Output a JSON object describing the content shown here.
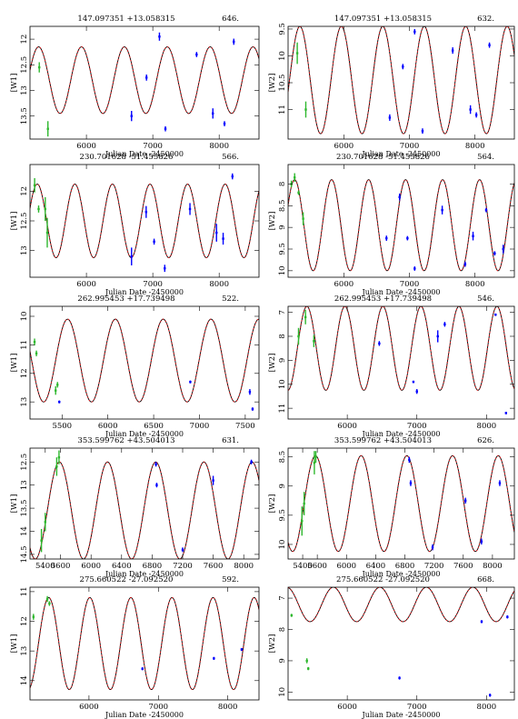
{
  "chart_data": [
    {
      "type": "line",
      "title_coords": "147.097351 +13.058315",
      "title_period": "646.",
      "ylabel": "[W1]",
      "xlabel": "Julian Date -2450000",
      "xlim": [
        5150,
        8600
      ],
      "ylim": [
        13.95,
        11.75
      ],
      "xticks": [
        6000,
        7000,
        8000
      ],
      "yticks": [
        12,
        12.5,
        13,
        13.5
      ],
      "model": {
        "period": 646,
        "mean": 12.8,
        "amp": 0.65,
        "t0": 5280
      },
      "series": [
        {
          "color": "#2eb82e",
          "points": [
            [
              5290,
              12.55,
              0.1
            ],
            [
              5420,
              13.75,
              0.15
            ]
          ]
        },
        {
          "color": "#0000ff",
          "points": [
            [
              6680,
              13.5,
              0.1
            ],
            [
              6905,
              12.75,
              0.06
            ],
            [
              7100,
              11.95,
              0.08
            ],
            [
              7190,
              13.75,
              0.05
            ],
            [
              7660,
              12.3,
              0.05
            ],
            [
              7905,
              13.45,
              0.1
            ],
            [
              8080,
              13.65,
              0.05
            ],
            [
              8220,
              12.05,
              0.06
            ]
          ]
        }
      ]
    },
    {
      "type": "line",
      "title_coords": "147.097351 +13.058315",
      "title_period": "632.",
      "ylabel": "[W2]",
      "xlabel": "Julian Date -2450000",
      "xlim": [
        5150,
        8600
      ],
      "ylim": [
        11.55,
        9.45
      ],
      "xticks": [
        6000,
        7000,
        8000
      ],
      "yticks": [
        9.5,
        10,
        10.5,
        11
      ],
      "model": {
        "period": 632,
        "mean": 10.45,
        "amp": 1.0,
        "t0": 5330
      },
      "series": [
        {
          "color": "#2eb82e",
          "points": [
            [
              5290,
              9.95,
              0.2
            ],
            [
              5420,
              11.0,
              0.15
            ]
          ]
        },
        {
          "color": "#0000ff",
          "points": [
            [
              6700,
              11.15,
              0.06
            ],
            [
              6900,
              10.2,
              0.05
            ],
            [
              7080,
              9.55,
              0.05
            ],
            [
              7200,
              11.4,
              0.05
            ],
            [
              7660,
              9.9,
              0.06
            ],
            [
              7930,
              11.0,
              0.08
            ],
            [
              8020,
              11.1,
              0.05
            ],
            [
              8220,
              9.8,
              0.05
            ]
          ]
        }
      ]
    },
    {
      "type": "line",
      "title_coords": "230.701628 -51.455826",
      "title_period": "566.",
      "ylabel": "[W1]",
      "xlabel": "Julian Date -2450000",
      "xlim": [
        5150,
        8600
      ],
      "ylim": [
        13.45,
        11.55
      ],
      "xticks": [
        6000,
        7000,
        8000
      ],
      "yticks": [
        12,
        12.5,
        13
      ],
      "model": {
        "period": 566,
        "mean": 12.5,
        "amp": 0.62,
        "t0": 5260
      },
      "series": [
        {
          "color": "#2eb82e",
          "points": [
            [
              5220,
              11.9,
              0.12
            ],
            [
              5280,
              12.3,
              0.06
            ],
            [
              5380,
              12.3,
              0.2
            ],
            [
              5410,
              12.7,
              0.25
            ]
          ]
        },
        {
          "color": "#0000ff",
          "points": [
            [
              6680,
              13.1,
              0.15
            ],
            [
              6900,
              12.35,
              0.1
            ],
            [
              7020,
              12.85,
              0.05
            ],
            [
              7180,
              13.3,
              0.06
            ],
            [
              7560,
              12.3,
              0.1
            ],
            [
              7960,
              12.7,
              0.15
            ],
            [
              8060,
              12.8,
              0.1
            ],
            [
              8200,
              11.75,
              0.05
            ]
          ]
        }
      ]
    },
    {
      "type": "line",
      "title_coords": "230.701628 -51.455826",
      "title_period": "564.",
      "ylabel": "[W2]",
      "xlabel": "Julian Date -2450000",
      "xlim": [
        5150,
        8600
      ],
      "ylim": [
        10.15,
        7.55
      ],
      "xticks": [
        6000,
        7000,
        8000
      ],
      "yticks": [
        8,
        8.5,
        9,
        9.5,
        10
      ],
      "model": {
        "period": 564,
        "mean": 8.95,
        "amp": 1.05,
        "t0": 5250
      },
      "series": [
        {
          "color": "#2eb82e",
          "points": [
            [
              5200,
              8.0,
              0.08
            ],
            [
              5250,
              7.85,
              0.1
            ],
            [
              5310,
              8.2,
              0.05
            ],
            [
              5380,
              8.8,
              0.15
            ]
          ]
        },
        {
          "color": "#0000ff",
          "points": [
            [
              6650,
              9.25,
              0.06
            ],
            [
              6850,
              8.3,
              0.08
            ],
            [
              6970,
              9.25,
              0.05
            ],
            [
              7080,
              9.95,
              0.05
            ],
            [
              7500,
              8.6,
              0.1
            ],
            [
              7850,
              9.85,
              0.06
            ],
            [
              7970,
              9.2,
              0.1
            ],
            [
              8170,
              8.6,
              0.05
            ],
            [
              8300,
              9.6,
              0.05
            ],
            [
              8430,
              9.5,
              0.1
            ]
          ]
        }
      ]
    },
    {
      "type": "line",
      "title_coords": "262.995453 +17.739498",
      "title_period": "522.",
      "ylabel": "[W1]",
      "xlabel": "Julian Date -2450000",
      "xlim": [
        5150,
        7650
      ],
      "ylim": [
        13.6,
        9.65
      ],
      "xticks": [
        5500,
        6000,
        6500,
        7000,
        7500
      ],
      "yticks": [
        10,
        11,
        12,
        13
      ],
      "model": {
        "period": 522,
        "mean": 11.55,
        "amp": 1.45,
        "t0": 5560
      },
      "series": [
        {
          "color": "#2eb82e",
          "points": [
            [
              5200,
              10.9,
              0.12
            ],
            [
              5220,
              11.3,
              0.1
            ],
            [
              5430,
              12.6,
              0.15
            ],
            [
              5450,
              12.4,
              0.1
            ]
          ]
        },
        {
          "color": "#0000ff",
          "points": [
            [
              5470,
              13.0,
              0.05
            ],
            [
              6900,
              12.3,
              0.05
            ],
            [
              7550,
              12.65,
              0.1
            ],
            [
              7580,
              13.25,
              0.06
            ]
          ]
        }
      ]
    },
    {
      "type": "line",
      "title_coords": "262.995453 +17.739498",
      "title_period": "546.",
      "ylabel": "[W2]",
      "xlabel": "Julian Date -2450000",
      "xlim": [
        5150,
        8400
      ],
      "ylim": [
        11.45,
        6.75
      ],
      "xticks": [
        6000,
        7000,
        8000
      ],
      "yticks": [
        7,
        8,
        9,
        10,
        11
      ],
      "model": {
        "period": 546,
        "mean": 8.5,
        "amp": 1.75,
        "t0": 5420
      },
      "series": [
        {
          "color": "#2eb82e",
          "points": [
            [
              5300,
              8.0,
              0.35
            ],
            [
              5400,
              7.2,
              0.3
            ],
            [
              5520,
              8.2,
              0.25
            ]
          ]
        },
        {
          "color": "#0000ff",
          "points": [
            [
              6460,
              8.3,
              0.1
            ],
            [
              6950,
              9.9,
              0.05
            ],
            [
              7000,
              10.3,
              0.1
            ],
            [
              7300,
              8.0,
              0.25
            ],
            [
              7400,
              7.5,
              0.1
            ],
            [
              8130,
              7.1,
              0.05
            ],
            [
              8280,
              11.2,
              0.05
            ]
          ]
        }
      ]
    },
    {
      "type": "line",
      "title_coords": "353.599762 +43.504013",
      "title_period": "631.",
      "ylabel": "[W1]",
      "xlabel": "Julian Date -2450000",
      "xlim": [
        5200,
        8200
      ],
      "ylim": [
        14.6,
        12.2
      ],
      "xticks": [
        5400,
        5600,
        6000,
        6400,
        6800,
        7200,
        7600,
        8000
      ],
      "xticklabels": [
        "5400",
        "5600",
        "6000",
        "6400",
        "6800",
        "7200",
        "7600",
        "8000"
      ],
      "yticks": [
        12.5,
        13,
        13.5,
        14,
        14.5
      ],
      "model": {
        "period": 631,
        "mean": 13.55,
        "amp": 1.05,
        "t0": 5585
      },
      "series": [
        {
          "color": "#2eb82e",
          "points": [
            [
              5350,
              14.2,
              0.25
            ],
            [
              5400,
              13.8,
              0.2
            ],
            [
              5550,
              12.6,
              0.2
            ],
            [
              5580,
              12.4,
              0.15
            ]
          ]
        },
        {
          "color": "#0000ff",
          "points": [
            [
              6850,
              12.55,
              0.05
            ],
            [
              6860,
              13.0,
              0.05
            ],
            [
              7200,
              14.4,
              0.05
            ],
            [
              7600,
              12.9,
              0.1
            ],
            [
              8100,
              12.5,
              0.05
            ]
          ]
        }
      ]
    },
    {
      "type": "line",
      "title_coords": "353.599762 +43.504013",
      "title_period": "626.",
      "ylabel": "[W2]",
      "xlabel": "Julian Date -2450000",
      "xlim": [
        5200,
        8300
      ],
      "ylim": [
        10.25,
        8.35
      ],
      "xticks": [
        5400,
        5600,
        6000,
        6400,
        6800,
        7200,
        7600,
        8000
      ],
      "yticks": [
        8.5,
        9,
        9.5,
        10
      ],
      "model": {
        "period": 626,
        "mean": 9.3,
        "amp": 0.82,
        "t0": 5575
      },
      "series": [
        {
          "color": "#2eb82e",
          "points": [
            [
              5390,
              9.6,
              0.25
            ],
            [
              5420,
              9.3,
              0.2
            ],
            [
              5560,
              8.6,
              0.2
            ],
            [
              5580,
              8.5,
              0.1
            ]
          ]
        },
        {
          "color": "#0000ff",
          "points": [
            [
              6860,
              8.55,
              0.05
            ],
            [
              6880,
              8.95,
              0.05
            ],
            [
              7180,
              10.05,
              0.05
            ],
            [
              7630,
              9.25,
              0.05
            ],
            [
              7850,
              9.95,
              0.05
            ],
            [
              8100,
              8.95,
              0.05
            ]
          ]
        }
      ]
    },
    {
      "type": "line",
      "title_coords": "275.660522 -27.092520",
      "title_period": "592.",
      "ylabel": "[W1]",
      "xlabel": "Julian Date -2450000",
      "xlim": [
        5150,
        8450
      ],
      "ylim": [
        14.65,
        10.85
      ],
      "xticks": [
        6000,
        7000,
        8000
      ],
      "yticks": [
        11,
        12,
        13,
        14
      ],
      "model": {
        "period": 592,
        "mean": 12.75,
        "amp": 1.55,
        "t0": 5420
      },
      "series": [
        {
          "color": "#2eb82e",
          "points": [
            [
              5200,
              11.85,
              0.1
            ],
            [
              5400,
              11.25,
              0.1
            ],
            [
              5430,
              11.4,
              0.08
            ]
          ]
        },
        {
          "color": "#0000ff",
          "points": [
            [
              6770,
              13.6,
              0.05
            ],
            [
              7800,
              13.25,
              0.05
            ],
            [
              8200,
              12.95,
              0.05
            ]
          ]
        }
      ]
    },
    {
      "type": "line",
      "title_coords": "275.660522 -27.092520",
      "title_period": "668.",
      "ylabel": "[W2]",
      "xlabel": "Julian Date -2450000",
      "xlim": [
        5150,
        8400
      ],
      "ylim": [
        10.25,
        6.65
      ],
      "xticks": [
        6000,
        7000,
        8000
      ],
      "yticks": [
        7,
        8,
        9,
        10
      ],
      "model": {
        "period": 668,
        "mean": 7.2,
        "amp": 0.55,
        "t0": 5800
      },
      "series": [
        {
          "color": "#2eb82e",
          "points": [
            [
              5200,
              7.55,
              0.05
            ],
            [
              5420,
              9.0,
              0.08
            ],
            [
              5440,
              9.25,
              0.05
            ]
          ]
        },
        {
          "color": "#0000ff",
          "points": [
            [
              6750,
              9.55,
              0.05
            ],
            [
              7930,
              7.75,
              0.05
            ],
            [
              8050,
              10.1,
              0.05
            ],
            [
              8300,
              7.6,
              0.05
            ]
          ]
        }
      ]
    }
  ]
}
